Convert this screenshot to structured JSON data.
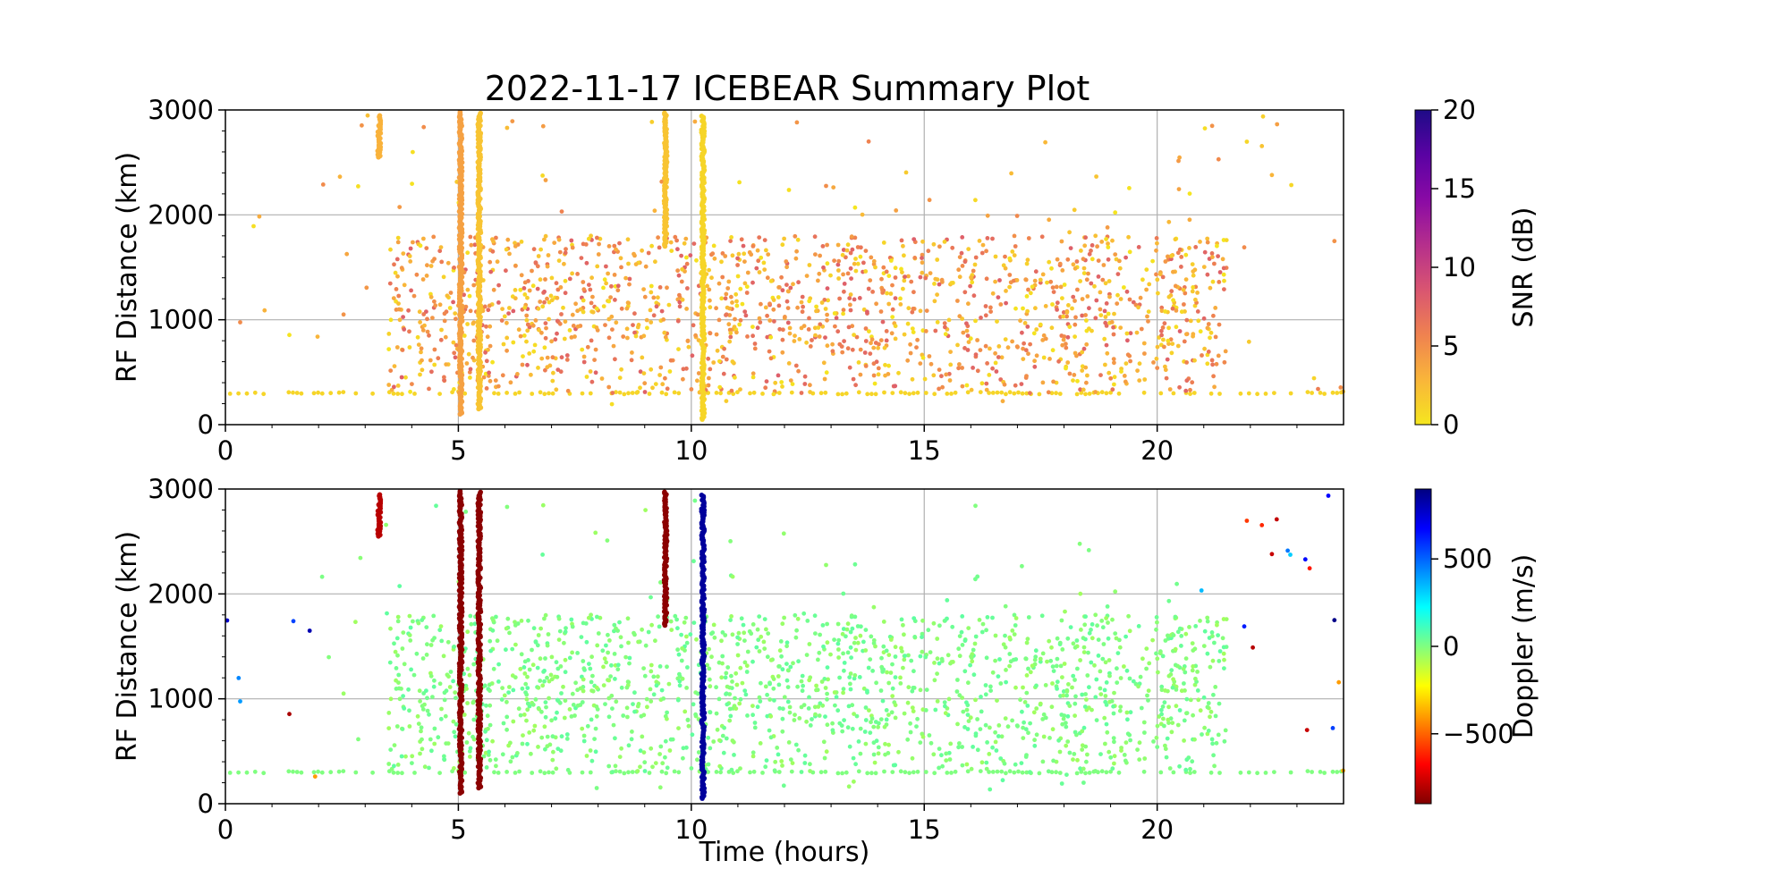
{
  "title": "2022-11-17 ICEBEAR Summary Plot",
  "chart_data": [
    {
      "type": "scatter",
      "panel": "top",
      "title": "2022-11-17 ICEBEAR Summary Plot",
      "xlabel": "",
      "ylabel": "RF Distance (km)",
      "xlim": [
        0,
        24
      ],
      "ylim": [
        0,
        3000
      ],
      "xticks": [
        0,
        5,
        10,
        15,
        20
      ],
      "yticks": [
        0,
        1000,
        2000,
        3000
      ],
      "xtick_labels": [
        "0",
        "5",
        "10",
        "15",
        "20"
      ],
      "ytick_labels": [
        "0",
        "1000",
        "2000",
        "3000"
      ],
      "grid": true,
      "color_variable": "SNR (dB)",
      "colorbar": {
        "label": "SNR (dB)",
        "colormap": "plasma_r",
        "range": [
          0,
          20
        ],
        "ticks": [
          0,
          5,
          10,
          15,
          20
        ],
        "tick_labels": [
          "0",
          "5",
          "10",
          "15",
          "20"
        ],
        "colors": [
          "#f5e61f",
          "#f9b53a",
          "#ef8250",
          "#d95571",
          "#b52f8c",
          "#8a0aa5",
          "#5a02a3",
          "#1e0b87"
        ]
      },
      "vertical_streaks": [
        {
          "x": 3.3,
          "y_range": [
            2550,
            2950
          ],
          "value": 3
        },
        {
          "x": 5.05,
          "y_range": [
            100,
            2980
          ],
          "value": 4
        },
        {
          "x": 5.45,
          "y_range": [
            150,
            2980
          ],
          "value": 2
        },
        {
          "x": 9.45,
          "y_range": [
            1700,
            2980
          ],
          "value": 2
        },
        {
          "x": 10.25,
          "y_range": [
            50,
            2950
          ],
          "value": 1
        }
      ],
      "background_band": {
        "y": 300,
        "x_range": [
          0,
          24
        ],
        "value": 1
      },
      "scatter_cloud": {
        "x_range": [
          3.5,
          21.5
        ],
        "y_range": [
          300,
          1800
        ],
        "value_range": [
          0,
          8
        ]
      }
    },
    {
      "type": "scatter",
      "panel": "bottom",
      "title": "",
      "xlabel": "Time (hours)",
      "ylabel": "RF Distance (km)",
      "xlim": [
        0,
        24
      ],
      "ylim": [
        0,
        3000
      ],
      "xticks": [
        0,
        5,
        10,
        15,
        20
      ],
      "yticks": [
        0,
        1000,
        2000,
        3000
      ],
      "xtick_labels": [
        "0",
        "5",
        "10",
        "15",
        "20"
      ],
      "ytick_labels": [
        "0",
        "1000",
        "2000",
        "3000"
      ],
      "grid": true,
      "color_variable": "Doppler (m/s)",
      "colorbar": {
        "label": "Doppler (m/s)",
        "colormap": "jet_r",
        "range": [
          -900,
          900
        ],
        "ticks": [
          -500,
          0,
          500
        ],
        "tick_labels": [
          "−500",
          "0",
          "500"
        ],
        "colors": [
          "#800000",
          "#ff0000",
          "#ff8000",
          "#ffff00",
          "#80ff80",
          "#00ffff",
          "#0080ff",
          "#0000ff",
          "#000080"
        ]
      },
      "vertical_streaks": [
        {
          "x": 3.3,
          "y_range": [
            2550,
            2950
          ],
          "value": -800
        },
        {
          "x": 5.05,
          "y_range": [
            100,
            2980
          ],
          "value": -880
        },
        {
          "x": 5.45,
          "y_range": [
            150,
            2980
          ],
          "value": -880
        },
        {
          "x": 9.45,
          "y_range": [
            1700,
            2980
          ],
          "value": -880
        },
        {
          "x": 10.25,
          "y_range": [
            50,
            2950
          ],
          "value": 850
        }
      ],
      "background_band": {
        "y": 300,
        "x_range": [
          0,
          24
        ],
        "value": 0
      },
      "scatter_cloud": {
        "x_range": [
          3.5,
          21.5
        ],
        "y_range": [
          300,
          1800
        ],
        "value_range": [
          -60,
          60
        ]
      }
    }
  ]
}
